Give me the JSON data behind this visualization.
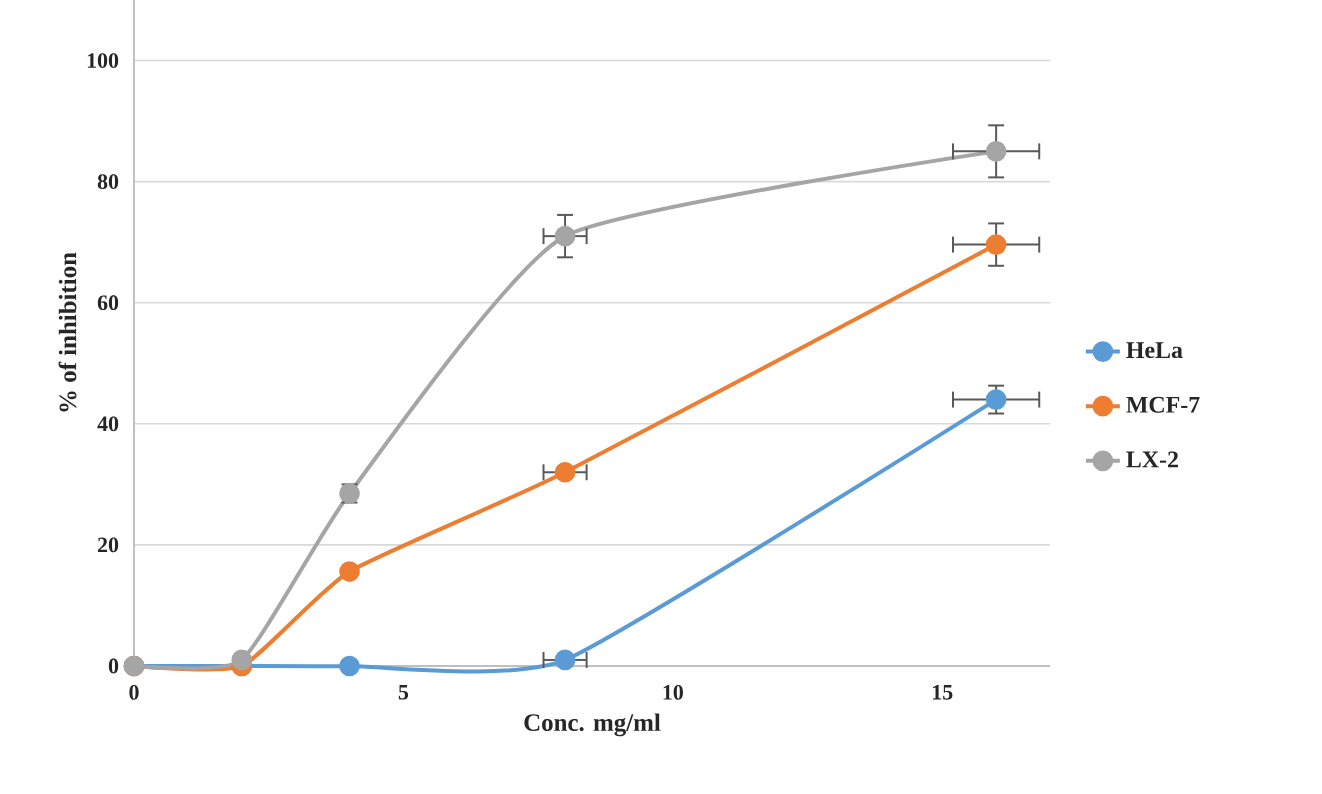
{
  "chart_data": {
    "type": "line",
    "xlabel": "Conc. mg/ml",
    "ylabel": "% of inhibition",
    "x": [
      0,
      2,
      4,
      8,
      16
    ],
    "xlim": [
      0,
      17
    ],
    "xticks": [
      0,
      5,
      10,
      15
    ],
    "ylim": [
      0,
      110
    ],
    "yticks": [
      0,
      20,
      40,
      60,
      80,
      100
    ],
    "grid": "y",
    "legend": "right",
    "marker": "circle",
    "line_style": "solid",
    "series": [
      {
        "name": "HeLa",
        "color": "#5b9bd5",
        "values": [
          0,
          0,
          0,
          1,
          44
        ],
        "errors": [
          null,
          null,
          null,
          null,
          2.3
        ],
        "xerrors": [
          null,
          null,
          null,
          0.4,
          0.8
        ]
      },
      {
        "name": "MCF-7",
        "color": "#ed7d31",
        "values": [
          0,
          0,
          15.6,
          32,
          69.6
        ],
        "errors": [
          null,
          null,
          null,
          null,
          3.5
        ],
        "xerrors": [
          null,
          null,
          null,
          0.4,
          0.8
        ]
      },
      {
        "name": "LX-2",
        "color": "#a5a5a5",
        "values": [
          0,
          1,
          28.5,
          71,
          85
        ],
        "errors": [
          null,
          null,
          1.5,
          3.5,
          4.3
        ],
        "xerrors": [
          null,
          null,
          null,
          0.4,
          0.8
        ]
      }
    ]
  }
}
